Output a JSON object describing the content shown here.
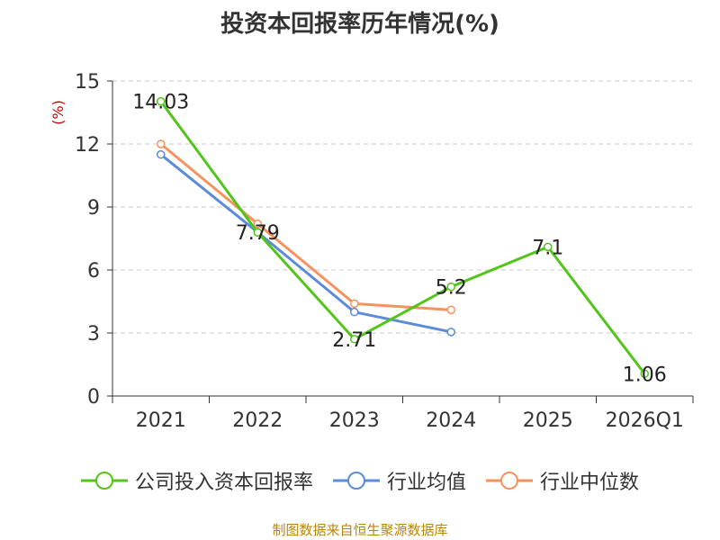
{
  "chart_data": {
    "type": "line",
    "title": "投资本回报率历年情况(%)",
    "ylabel": "(%)",
    "xlabel": "",
    "categories": [
      "2021",
      "2022",
      "2023",
      "2024",
      "2025",
      "2026Q1"
    ],
    "ylim": [
      0,
      15
    ],
    "yticks": [
      0,
      3,
      6,
      9,
      12,
      15
    ],
    "grid": true,
    "legend_position": "bottom",
    "series": [
      {
        "name": "公司投入资本回报率",
        "color": "#52c41a",
        "values": [
          14.03,
          7.79,
          2.71,
          5.2,
          7.1,
          1.06
        ],
        "labels": [
          "14.03",
          "7.79",
          "2.71",
          "5.2",
          "7.1",
          "1.06"
        ]
      },
      {
        "name": "行业均值",
        "color": "#5b8bd9",
        "values": [
          11.5,
          7.8,
          4.0,
          3.05,
          null,
          null
        ]
      },
      {
        "name": "行业中位数",
        "color": "#f5925e",
        "values": [
          12.0,
          8.2,
          4.4,
          4.1,
          null,
          null
        ]
      }
    ]
  },
  "source_note": "制图数据来自恒生聚源数据库"
}
